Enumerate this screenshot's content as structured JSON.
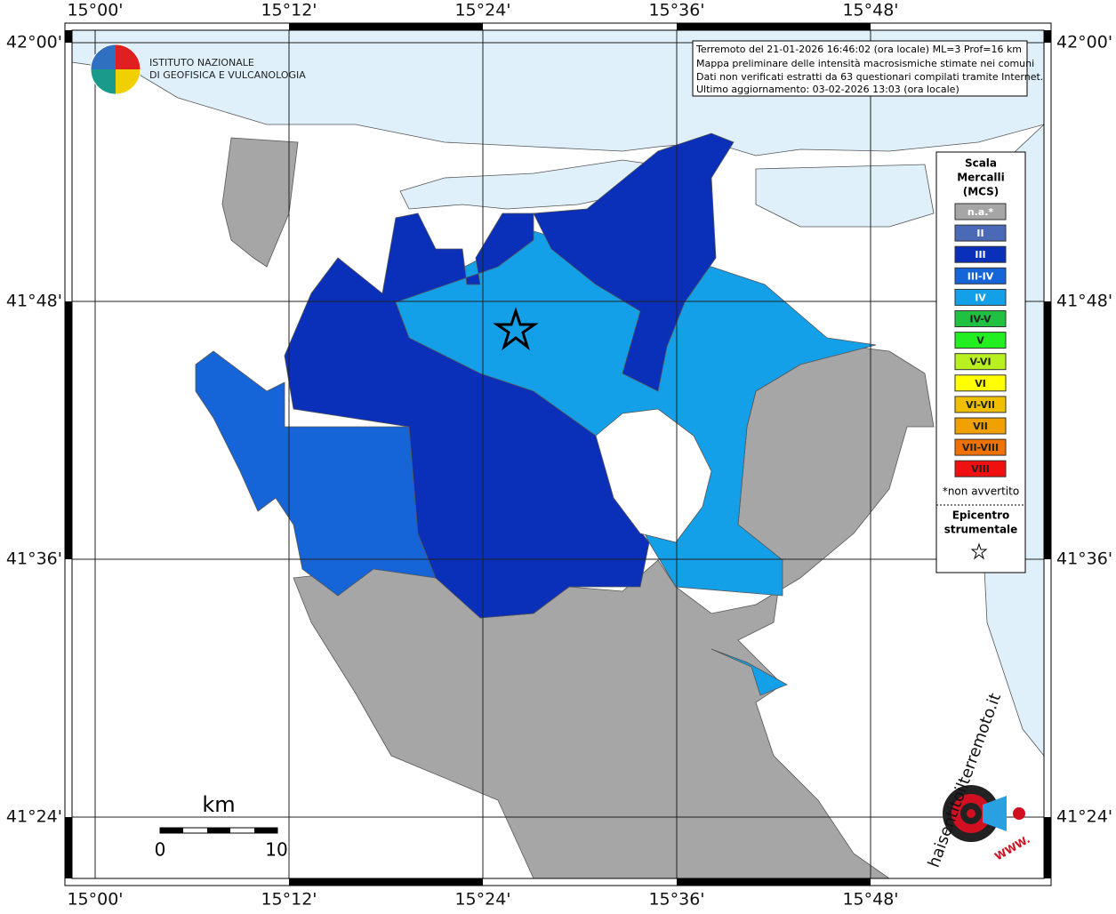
{
  "header": {
    "org_lines": [
      "ISTITUTO NAZIONALE",
      "DI GEOFISICA E VULCANOLOGIA"
    ]
  },
  "info": {
    "lines": [
      "Terremoto del 21-01-2026 16:46:02 (ora locale) ML=3 Prof=16 km",
      "Mappa preliminare delle intensità macrosismiche stimate nei comuni",
      "Dati non verificati estratti da 63 questionari compilati tramite Internet.",
      "Ultimo aggiornamento: 03-02-2026 13:03 (ora locale)"
    ]
  },
  "map": {
    "lon_ticks": [
      "15°00'",
      "15°12'",
      "15°24'",
      "15°36'",
      "15°48'"
    ],
    "lat_ticks": [
      "42°00'",
      "41°48'",
      "41°36'",
      "41°24'"
    ]
  },
  "legend": {
    "title_lines": [
      "Scala",
      "Mercalli",
      "(MCS)"
    ],
    "items": [
      {
        "label": "n.a.*",
        "color": "#a6a6a6"
      },
      {
        "label": "II",
        "color": "#4a6ab8"
      },
      {
        "label": "III",
        "color": "#0a2fb8"
      },
      {
        "label": "III-IV",
        "color": "#1565d8"
      },
      {
        "label": "IV",
        "color": "#14a0e8"
      },
      {
        "label": "IV-V",
        "color": "#20c040"
      },
      {
        "label": "V",
        "color": "#22ee22"
      },
      {
        "label": "V-VI",
        "color": "#b8f020"
      },
      {
        "label": "VI",
        "color": "#ffff00"
      },
      {
        "label": "VI-VII",
        "color": "#f0c000"
      },
      {
        "label": "VII",
        "color": "#f0a000"
      },
      {
        "label": "VII-VIII",
        "color": "#f07000"
      },
      {
        "label": "VIII",
        "color": "#f01010"
      }
    ],
    "note": "*non avvertito",
    "epicenter_lines": [
      "Epicentro",
      "strumentale"
    ]
  },
  "scale": {
    "unit": "km",
    "start": "0",
    "end": "10"
  },
  "badge": {
    "site": "haisentitoilterremoto.it",
    "prefix": "WWW."
  }
}
